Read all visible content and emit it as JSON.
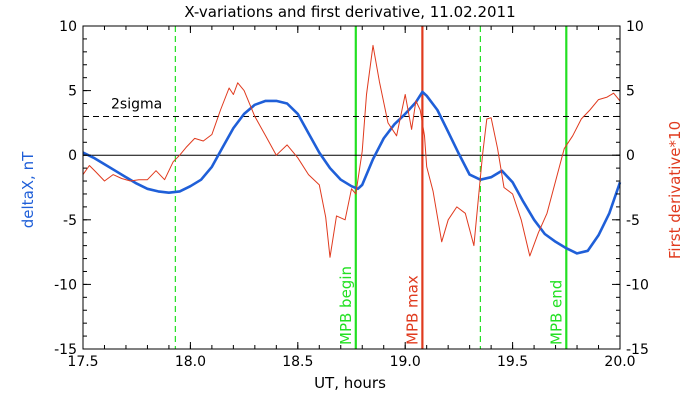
{
  "chart_data": {
    "type": "line",
    "title": "X-variations and first derivative, 11.02.2011",
    "xlabel": "UT, hours",
    "ylabel_left": "deltaX, nT",
    "ylabel_right": "First derivative*10",
    "xlim": [
      17.5,
      20.0
    ],
    "ylim": [
      -15,
      10
    ],
    "x_ticks": [
      "17.5",
      "18.0",
      "18.5",
      "19.0",
      "19.5",
      "20.0"
    ],
    "y_ticks": [
      "-15",
      "-10",
      "-5",
      "0",
      "5",
      "10"
    ],
    "y_tick_values": [
      -15,
      -10,
      -5,
      0,
      5,
      10
    ],
    "x_tick_values": [
      17.5,
      18.0,
      18.5,
      19.0,
      19.5,
      20.0
    ],
    "grid": false,
    "sigma_level": 3.0,
    "sigma_label": "2sigma",
    "colors": {
      "deltaX": "#1f5fd8",
      "derivative": "#e03a1e",
      "mpb_marker": "#22e022",
      "mpb_max": "#e03a1e",
      "axes": "#000000"
    },
    "series": [
      {
        "x": [
          17.5,
          17.55,
          17.6,
          17.65,
          17.7,
          17.75,
          17.8,
          17.85,
          17.9,
          17.95,
          18.0,
          18.05,
          18.1,
          18.15,
          18.2,
          18.25,
          18.3,
          18.35,
          18.4,
          18.45,
          18.5,
          18.55,
          18.6,
          18.65,
          18.7,
          18.75,
          18.78,
          18.8,
          18.85,
          18.9,
          18.95,
          19.0,
          19.05,
          19.08,
          19.1,
          19.15,
          19.2,
          19.25,
          19.3,
          19.35,
          19.4,
          19.45,
          19.5,
          19.55,
          19.6,
          19.65,
          19.7,
          19.75,
          19.8,
          19.85,
          19.9,
          19.95,
          20.0
        ],
        "values": [
          0.2,
          -0.2,
          -0.7,
          -1.2,
          -1.7,
          -2.2,
          -2.6,
          -2.8,
          -2.9,
          -2.8,
          -2.4,
          -1.9,
          -0.9,
          0.6,
          2.1,
          3.2,
          3.9,
          4.2,
          4.2,
          4.0,
          3.2,
          1.7,
          0.2,
          -1.0,
          -1.9,
          -2.4,
          -2.6,
          -2.3,
          -0.3,
          1.3,
          2.4,
          3.2,
          4.1,
          4.9,
          4.6,
          3.5,
          1.8,
          0.1,
          -1.5,
          -1.9,
          -1.7,
          -1.2,
          -2.1,
          -3.6,
          -5.0,
          -6.1,
          -6.7,
          -7.2,
          -7.6,
          -7.4,
          -6.2,
          -4.5,
          -2.1
        ]
      },
      {
        "x": [
          17.5,
          17.53,
          17.56,
          17.6,
          17.64,
          17.68,
          17.72,
          17.76,
          17.8,
          17.84,
          17.88,
          17.92,
          17.95,
          17.98,
          18.02,
          18.06,
          18.1,
          18.14,
          18.18,
          18.2,
          18.22,
          18.25,
          18.3,
          18.35,
          18.4,
          18.45,
          18.5,
          18.55,
          18.6,
          18.63,
          18.65,
          18.68,
          18.72,
          18.75,
          18.77,
          18.8,
          18.82,
          18.85,
          18.88,
          18.92,
          18.96,
          19.0,
          19.03,
          19.05,
          19.07,
          19.09,
          19.1,
          19.13,
          19.17,
          19.2,
          19.24,
          19.28,
          19.32,
          19.36,
          19.38,
          19.4,
          19.43,
          19.46,
          19.5,
          19.54,
          19.58,
          19.62,
          19.66,
          19.7,
          19.74,
          19.78,
          19.82,
          19.86,
          19.9,
          19.94,
          19.97,
          20.0
        ],
        "values": [
          -1.5,
          -0.8,
          -1.3,
          -2.0,
          -1.5,
          -1.8,
          -2.0,
          -1.9,
          -1.9,
          -1.2,
          -1.9,
          -0.5,
          0.0,
          0.6,
          1.3,
          1.1,
          1.6,
          3.5,
          5.2,
          4.7,
          5.6,
          5.0,
          3.0,
          1.5,
          0.0,
          0.8,
          -0.2,
          -1.5,
          -2.3,
          -4.8,
          -7.9,
          -4.7,
          -5.0,
          -2.6,
          -3.0,
          0.3,
          4.7,
          8.5,
          5.7,
          2.5,
          1.5,
          4.7,
          2.0,
          4.2,
          3.5,
          1.5,
          -0.9,
          -2.8,
          -6.7,
          -5.0,
          -4.0,
          -4.5,
          -7.0,
          0.0,
          2.8,
          2.9,
          0.5,
          -2.5,
          -3.0,
          -5.0,
          -7.8,
          -6.0,
          -4.5,
          -2.0,
          0.5,
          1.5,
          2.8,
          3.5,
          4.3,
          4.5,
          4.8,
          4.2
        ]
      }
    ],
    "markers": [
      {
        "x": 17.93,
        "style": "dashed",
        "color": "#22e022",
        "label": ""
      },
      {
        "x": 18.77,
        "style": "solid",
        "color": "#22e022",
        "label": "MPB begin"
      },
      {
        "x": 19.08,
        "style": "solid",
        "color": "#e03a1e",
        "label": "MPB max"
      },
      {
        "x": 19.35,
        "style": "dashed",
        "color": "#22e022",
        "label": ""
      },
      {
        "x": 19.75,
        "style": "solid",
        "color": "#22e022",
        "label": "MPB end"
      }
    ]
  }
}
